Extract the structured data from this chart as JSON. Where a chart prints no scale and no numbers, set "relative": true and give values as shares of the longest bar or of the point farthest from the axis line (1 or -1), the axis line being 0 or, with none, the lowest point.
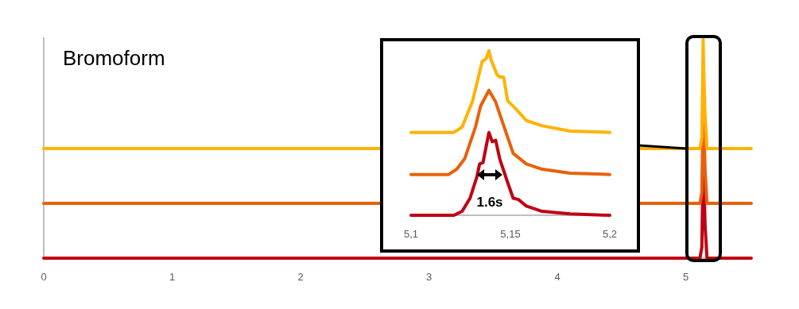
{
  "chart_data": [
    {
      "type": "line",
      "title": "Bromoform",
      "relative": true,
      "xlim": [
        0,
        5.51
      ],
      "xticks": [
        0,
        1,
        2,
        3,
        4,
        5
      ],
      "series": [
        {
          "color": "#c00012",
          "x": [
            0,
            5.11,
            5.125,
            5.13,
            5.135,
            5.14,
            5.15,
            5.165,
            5.51
          ],
          "values": [
            0,
            0,
            0.05,
            0.25,
            0.5,
            0.4,
            0.15,
            0,
            0
          ]
        },
        {
          "color": "#e8610a",
          "x": [
            0,
            5.11,
            5.125,
            5.13,
            5.135,
            5.14,
            5.15,
            5.165,
            5.51
          ],
          "values": [
            0.25,
            0.25,
            0.3,
            0.5,
            0.75,
            0.65,
            0.4,
            0.25,
            0.25
          ]
        },
        {
          "color": "#ffb300",
          "x": [
            0,
            5.11,
            5.125,
            5.13,
            5.135,
            5.14,
            5.15,
            5.165,
            5.51
          ],
          "values": [
            0.5,
            0.5,
            0.55,
            0.75,
            1,
            0.85,
            0.65,
            0.5,
            0.5
          ]
        }
      ]
    },
    {
      "type": "line",
      "relative": true,
      "xlim": [
        5.1,
        5.2
      ],
      "xticks": [
        {
          "value": 5.1,
          "label": "5,1"
        },
        {
          "value": 5.15,
          "label": "5,15"
        },
        {
          "value": 5.2,
          "label": "5,2"
        }
      ],
      "annotations": [
        "1.6s"
      ],
      "series": [
        {
          "color": "#c00012",
          "x": [
            5.1,
            5.1216,
            5.1257,
            5.1297,
            5.1331,
            5.1345,
            5.1362,
            5.1392,
            5.1408,
            5.1426,
            5.1446,
            5.1486,
            5.1514,
            5.154,
            5.158,
            5.166,
            5.18,
            5.2
          ],
          "values": [
            0,
            0,
            0.024,
            0.104,
            0.232,
            0.312,
            0.32,
            0.504,
            0.448,
            0.456,
            0.344,
            0.2,
            0.104,
            0.096,
            0.056,
            0.024,
            0.008,
            0
          ]
        },
        {
          "color": "#e8610a",
          "x": [
            5.1,
            5.1189,
            5.123,
            5.127,
            5.1324,
            5.135,
            5.1392,
            5.1426,
            5.1446,
            5.1514,
            5.158,
            5.166,
            5.18,
            5.2
          ],
          "values": [
            0.248,
            0.248,
            0.28,
            0.344,
            0.536,
            0.664,
            0.76,
            0.688,
            0.616,
            0.376,
            0.312,
            0.28,
            0.256,
            0.248
          ]
        },
        {
          "color": "#ffb300",
          "x": [
            5.1,
            5.1216,
            5.1257,
            5.131,
            5.1358,
            5.1378,
            5.1392,
            5.1403,
            5.1432,
            5.1446,
            5.1466,
            5.1486,
            5.1527,
            5.158,
            5.166,
            5.18,
            5.2
          ],
          "values": [
            0.504,
            0.504,
            0.536,
            0.696,
            0.936,
            0.952,
            1,
            0.944,
            0.856,
            0.84,
            0.84,
            0.696,
            0.648,
            0.576,
            0.544,
            0.512,
            0.504
          ]
        }
      ]
    }
  ]
}
